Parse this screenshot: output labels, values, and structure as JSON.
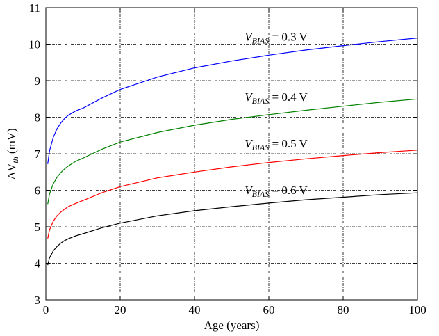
{
  "chart_data": {
    "type": "line",
    "xlabel": "Age (years)",
    "ylabel": {
      "prefix": "ΔV",
      "sub": "th",
      "unit": " (mV)"
    },
    "xlim": [
      0,
      100
    ],
    "ylim": [
      3,
      11
    ],
    "xticks": [
      0,
      20,
      40,
      60,
      80,
      100
    ],
    "yticks": [
      3,
      4,
      5,
      6,
      7,
      8,
      9,
      10,
      11
    ],
    "grid": true,
    "grid_style": "dash-dot",
    "series": [
      {
        "name": {
          "var": "V",
          "sub": "BIAS",
          "value": " = 0.3 V"
        },
        "color": "#0000ff",
        "x": [
          0.5,
          1,
          2,
          3,
          4,
          5,
          6,
          8,
          10,
          15,
          20,
          30,
          40,
          50,
          60,
          70,
          80,
          90,
          100
        ],
        "y": [
          6.72,
          7.08,
          7.45,
          7.68,
          7.84,
          7.96,
          8.05,
          8.17,
          8.25,
          8.52,
          8.76,
          9.1,
          9.35,
          9.54,
          9.7,
          9.84,
          9.96,
          10.07,
          10.17
        ]
      },
      {
        "name": {
          "var": "V",
          "sub": "BIAS",
          "value": " = 0.4 V"
        },
        "color": "#008000",
        "x": [
          0.5,
          1,
          2,
          3,
          4,
          5,
          6,
          8,
          10,
          15,
          20,
          30,
          40,
          50,
          60,
          70,
          80,
          90,
          100
        ],
        "y": [
          5.62,
          5.9,
          6.18,
          6.35,
          6.48,
          6.58,
          6.66,
          6.79,
          6.88,
          7.12,
          7.32,
          7.58,
          7.78,
          7.94,
          8.07,
          8.19,
          8.3,
          8.41,
          8.5
        ]
      },
      {
        "name": {
          "var": "V",
          "sub": "BIAS",
          "value": " = 0.5 V"
        },
        "color": "#ff0000",
        "x": [
          0.5,
          1,
          2,
          3,
          4,
          5,
          6,
          8,
          10,
          15,
          20,
          30,
          40,
          50,
          60,
          70,
          80,
          90,
          100
        ],
        "y": [
          4.68,
          4.92,
          5.15,
          5.3,
          5.4,
          5.48,
          5.55,
          5.64,
          5.72,
          5.93,
          6.1,
          6.34,
          6.5,
          6.64,
          6.76,
          6.86,
          6.95,
          7.03,
          7.1
        ]
      },
      {
        "name": {
          "var": "V",
          "sub": "BIAS",
          "value": " = 0.6 V"
        },
        "color": "#000000",
        "x": [
          0.5,
          1,
          2,
          3,
          4,
          5,
          6,
          8,
          10,
          15,
          20,
          30,
          40,
          50,
          60,
          70,
          80,
          90,
          100
        ],
        "y": [
          3.95,
          4.15,
          4.34,
          4.46,
          4.55,
          4.62,
          4.67,
          4.75,
          4.81,
          4.97,
          5.1,
          5.3,
          5.44,
          5.55,
          5.65,
          5.74,
          5.81,
          5.88,
          5.93
        ]
      }
    ],
    "annotations": [
      {
        "series": 0,
        "x": 53.5,
        "y": 10.1
      },
      {
        "series": 1,
        "x": 53.5,
        "y": 8.45
      },
      {
        "series": 2,
        "x": 53.5,
        "y": 7.17
      },
      {
        "series": 3,
        "x": 53.5,
        "y": 5.9
      }
    ]
  }
}
